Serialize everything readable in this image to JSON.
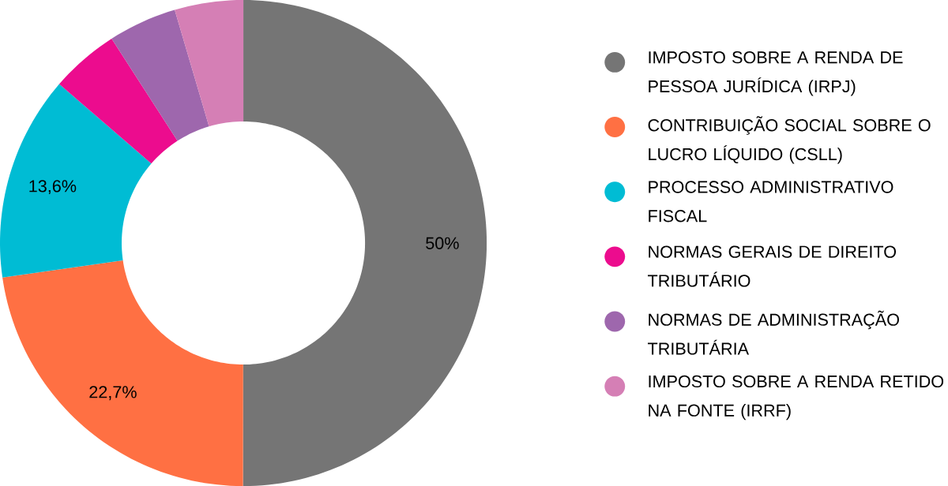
{
  "chart_data": {
    "type": "donut",
    "categories": [
      "IMPOSTO SOBRE A RENDA DE PESSOA JURÍDICA (IRPJ)",
      "CONTRIBUIÇÃO SOCIAL SOBRE O LUCRO LÍQUIDO (CSLL)",
      "PROCESSO ADMINISTRATIVO FISCAL",
      "NORMAS GERAIS DE DIREITO TRIBUTÁRIO",
      "NORMAS DE ADMINISTRAÇÃO TRIBUTÁRIA",
      "IMPOSTO SOBRE A RENDA RETIDO NA FONTE (IRRF)"
    ],
    "values": [
      50,
      22.7,
      13.6,
      4.55,
      4.55,
      4.55
    ],
    "colors": [
      "#757575",
      "#ff7043",
      "#00bcd4",
      "#ec0c8e",
      "#9e67ad",
      "#d57fb5"
    ],
    "value_labels": [
      "50%",
      "22,7%",
      "13,6%",
      null,
      null,
      null
    ],
    "legend": "right"
  }
}
